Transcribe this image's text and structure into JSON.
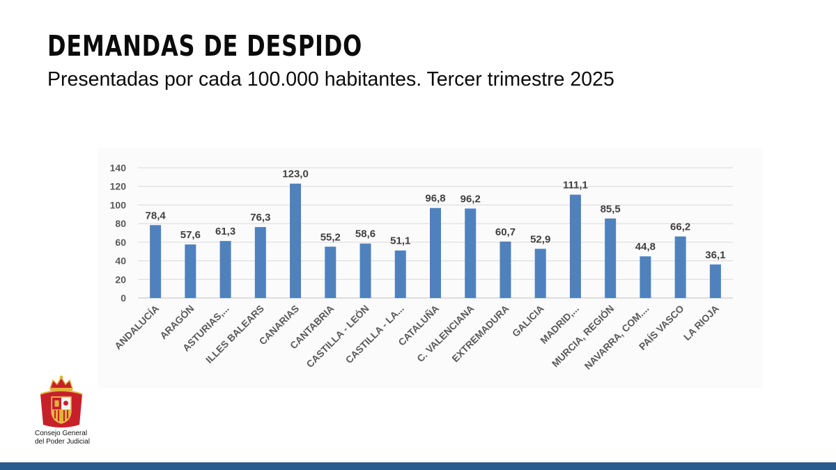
{
  "header": {
    "title": "DEMANDAS DE DESPIDO",
    "subtitle": "Presentadas por cada 100.000 habitantes. Tercer trimestre 2025"
  },
  "chart_data": {
    "type": "bar",
    "title": "DEMANDAS DE DESPIDO",
    "subtitle": "Presentadas por cada 100.000 habitantes. Tercer trimestre 2025",
    "categories": [
      "ANDALUCÍA",
      "ARAGÓN",
      "ASTURIAS,...",
      "ILLES BALEARS",
      "CANARIAS",
      "CANTABRIA",
      "CASTILLA - LEÓN",
      "CASTILLA - LA...",
      "CATALUÑA",
      "C. VALENCIANA",
      "EXTREMADURA",
      "GALICIA",
      "MADRID,...",
      "MURCIA, REGIÓN",
      "NAVARRA, COM....",
      "PAÍS VASCO",
      "LA RIOJA"
    ],
    "values": [
      78.4,
      57.6,
      61.3,
      76.3,
      123.0,
      55.2,
      58.6,
      51.1,
      96.8,
      96.2,
      60.7,
      52.9,
      111.1,
      85.5,
      44.8,
      66.2,
      36.1
    ],
    "value_labels": [
      "78,4",
      "57,6",
      "61,3",
      "76,3",
      "123,0",
      "55,2",
      "58,6",
      "51,1",
      "96,8",
      "96,2",
      "60,7",
      "52,9",
      "111,1",
      "85,5",
      "44,8",
      "66,2",
      "36,1"
    ],
    "yticks": [
      0,
      20,
      40,
      60,
      80,
      100,
      120,
      140
    ],
    "ylim": [
      0,
      140
    ],
    "xlabel": "",
    "ylabel": "",
    "grid": true,
    "bar_color": "#4f81bd"
  },
  "logo": {
    "line1": "Consejo General",
    "line2": "del Poder Judicial"
  },
  "colors": {
    "bottom_bar": "#2a5b8f",
    "logo_red": "#c8202a",
    "logo_gold": "#e3b23c"
  }
}
